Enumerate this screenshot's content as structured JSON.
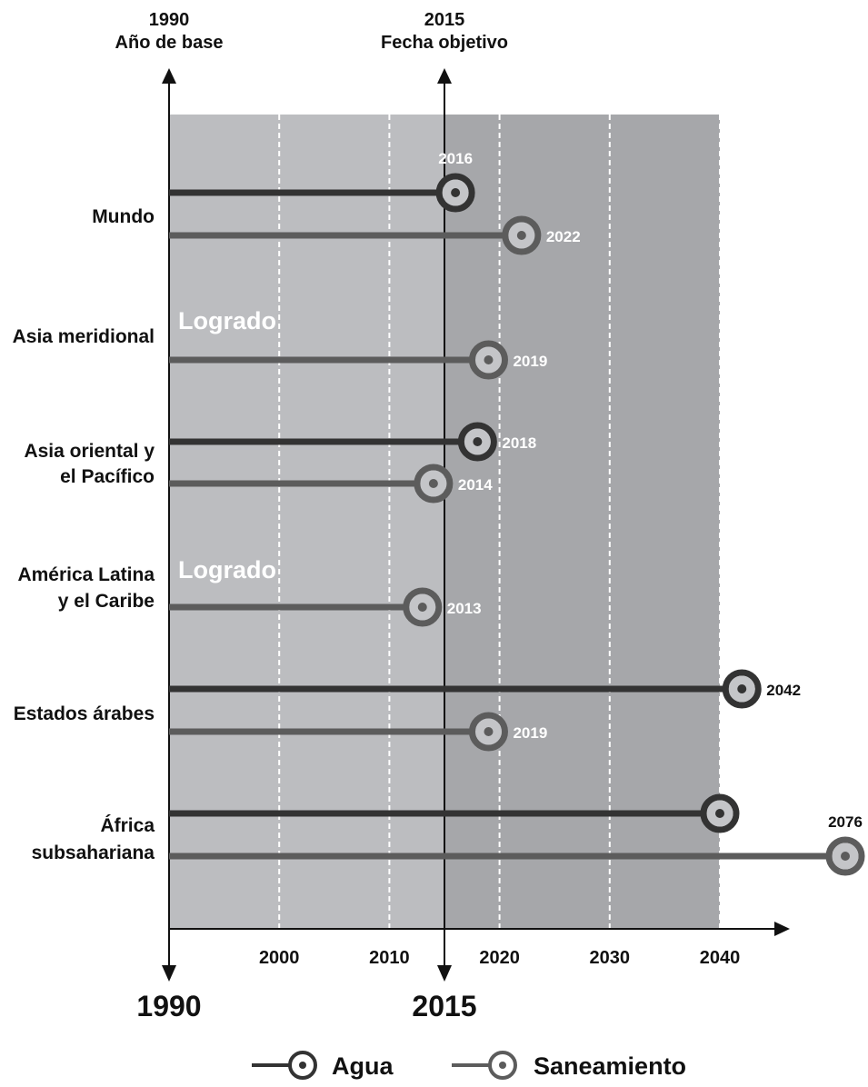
{
  "chart_data": {
    "type": "timeline",
    "top_markers": [
      {
        "year": "1990",
        "label": "Año de base"
      },
      {
        "year": "2015",
        "label": "Fecha objetivo"
      }
    ],
    "x_ticks": [
      "2000",
      "2010",
      "2020",
      "2030",
      "2040"
    ],
    "x_main_labels": [
      "1990",
      "2015"
    ],
    "xlim": [
      1990,
      2040
    ],
    "grid": "vertical dashed every 10 years",
    "achieved_label": "Logrado",
    "series": [
      {
        "name": "Agua",
        "color": "#333333"
      },
      {
        "name": "Saneamiento",
        "color": "#5c5c5c"
      }
    ],
    "regions": [
      {
        "label_lines": [
          "Mundo"
        ],
        "agua": 2016,
        "saneamiento": 2022
      },
      {
        "label_lines": [
          "Asia meridional"
        ],
        "agua": "Logrado",
        "saneamiento": 2019
      },
      {
        "label_lines": [
          "Asia oriental y",
          "el Pacífico"
        ],
        "agua": 2018,
        "saneamiento": 2014
      },
      {
        "label_lines": [
          "América Latina",
          "y el Caribe"
        ],
        "agua": "Logrado",
        "saneamiento": 2013
      },
      {
        "label_lines": [
          "Estados árabes"
        ],
        "agua": 2042,
        "saneamiento": 2019
      },
      {
        "label_lines": [
          "África",
          "subsahariana"
        ],
        "agua": 2040,
        "saneamiento": 2076
      }
    ],
    "colors": {
      "panel_light": "#bcbdc0",
      "panel_dark": "#a6a7aa",
      "agua": "#333333",
      "saneamiento": "#5c5c5c"
    }
  }
}
